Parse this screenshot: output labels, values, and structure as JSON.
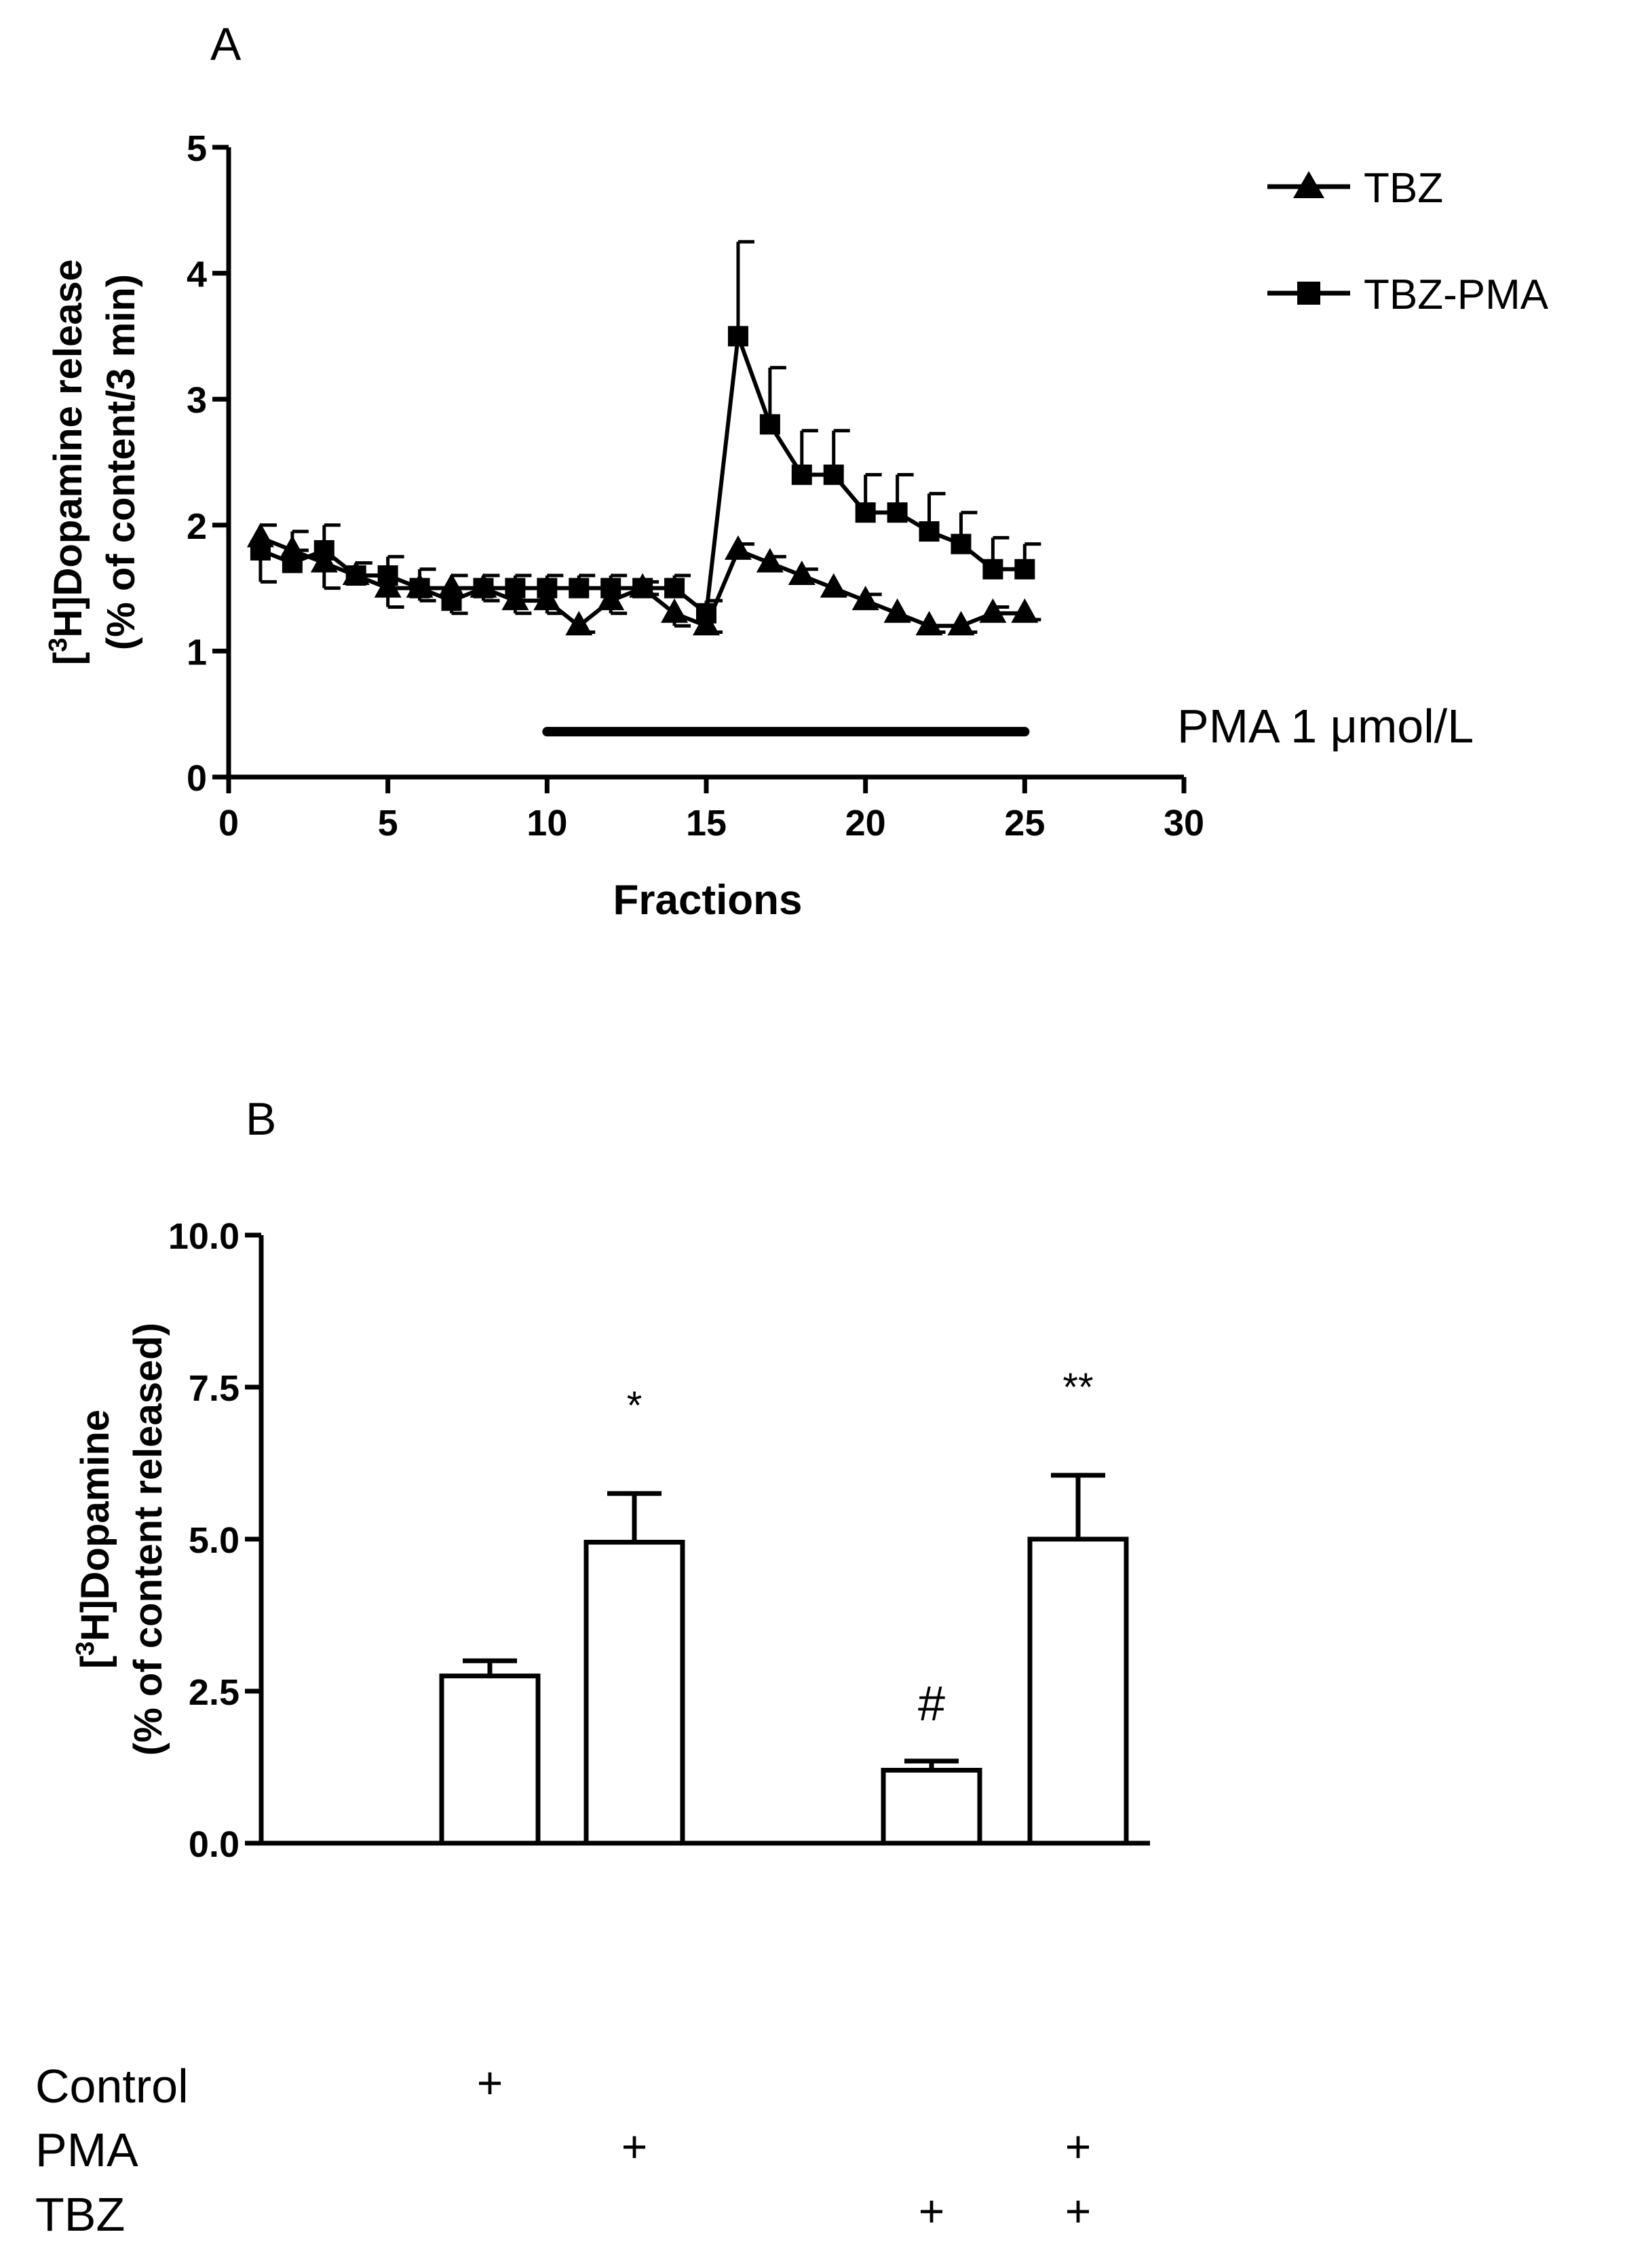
{
  "chart_data": [
    {
      "panel": "A",
      "type": "line",
      "xlabel": "Fractions",
      "ylabel_main": "[3H]Dopamine release",
      "ylabel_sup": "3",
      "ylabel_pre": "[",
      "ylabel_post": "H]Dopamine release",
      "ylabel_sub": "(% of content/3 min)",
      "xlim": [
        0,
        30
      ],
      "ylim": [
        0,
        5
      ],
      "xticks": [
        0,
        5,
        10,
        15,
        20,
        25,
        30
      ],
      "yticks": [
        0,
        1,
        2,
        3,
        4,
        5
      ],
      "treatment_bar": {
        "from": 10,
        "to": 25,
        "y": 0.36,
        "label": "PMA 1 μmol/L"
      },
      "series": [
        {
          "name": "TBZ",
          "marker": "triangle",
          "x": [
            1,
            2,
            3,
            4,
            5,
            6,
            7,
            8,
            9,
            10,
            11,
            12,
            13,
            14,
            15,
            16,
            17,
            18,
            19,
            20,
            21,
            22,
            23,
            24,
            25
          ],
          "y": [
            1.9,
            1.8,
            1.7,
            1.6,
            1.5,
            1.5,
            1.5,
            1.5,
            1.4,
            1.4,
            1.2,
            1.4,
            1.5,
            1.3,
            1.2,
            1.8,
            1.7,
            1.6,
            1.5,
            1.4,
            1.3,
            1.2,
            1.2,
            1.3,
            1.3
          ],
          "err": [
            0.1,
            0.15,
            0.2,
            0.1,
            0.15,
            0.1,
            0.1,
            0.1,
            0.1,
            0.1,
            0.05,
            0.1,
            0.05,
            0.1,
            0.05,
            0.05,
            0.05,
            0.05,
            0.05,
            0.05,
            0.05,
            0.05,
            0.05,
            0.05,
            0.05
          ],
          "err_dir": [
            1,
            1,
            -1,
            1,
            -1,
            -1,
            1,
            -1,
            -1,
            -1,
            -1,
            -1,
            -1,
            -1,
            -1,
            1,
            1,
            1,
            -1,
            1,
            -1,
            -1,
            -1,
            1,
            -1
          ]
        },
        {
          "name": "TBZ-PMA",
          "marker": "square",
          "x": [
            1,
            2,
            3,
            4,
            5,
            6,
            7,
            8,
            9,
            10,
            11,
            12,
            13,
            14,
            15,
            16,
            17,
            18,
            19,
            20,
            21,
            22,
            23,
            24,
            25
          ],
          "y": [
            1.8,
            1.7,
            1.8,
            1.6,
            1.6,
            1.5,
            1.4,
            1.5,
            1.5,
            1.5,
            1.5,
            1.5,
            1.5,
            1.5,
            1.3,
            3.5,
            2.8,
            2.4,
            2.4,
            2.1,
            2.1,
            1.95,
            1.85,
            1.65,
            1.65
          ],
          "err": [
            0.25,
            0.1,
            0.2,
            0.1,
            0.15,
            0.15,
            0.1,
            0.1,
            0.1,
            0.1,
            0.1,
            0.1,
            0.05,
            0.1,
            0.1,
            0.75,
            0.45,
            0.35,
            0.35,
            0.3,
            0.3,
            0.3,
            0.25,
            0.25,
            0.2
          ],
          "err_dir": [
            -1,
            1,
            1,
            1,
            1,
            1,
            -1,
            1,
            1,
            1,
            1,
            1,
            1,
            1,
            1,
            1,
            1,
            1,
            1,
            1,
            1,
            1,
            1,
            1,
            1
          ]
        }
      ]
    },
    {
      "panel": "B",
      "type": "bar",
      "ylabel_pre": "[",
      "ylabel_sup": "3",
      "ylabel_post": "H]Dopamine",
      "ylabel_sub": "(% of content released)",
      "ylim": [
        0,
        10
      ],
      "yticks": [
        "0.0",
        "2.5",
        "5.0",
        "7.5",
        "10.0"
      ],
      "categories": [
        "Control",
        "PMA",
        "TBZ",
        "TBZ+PMA"
      ],
      "values": [
        2.75,
        4.95,
        1.2,
        5.0
      ],
      "errors": [
        0.25,
        0.8,
        0.15,
        1.05
      ],
      "annotations": [
        "",
        "*",
        "#",
        "**"
      ],
      "condition_rows": [
        {
          "label": "Control",
          "marks": [
            "+",
            "",
            "",
            ""
          ]
        },
        {
          "label": "PMA",
          "marks": [
            "",
            "+",
            "",
            "+"
          ]
        },
        {
          "label": "TBZ",
          "marks": [
            "",
            "",
            "+",
            "+"
          ]
        }
      ]
    }
  ],
  "panel_letters": {
    "a": "A",
    "b": "B"
  },
  "legend": {
    "series1": "TBZ",
    "series2": "TBZ-PMA"
  }
}
